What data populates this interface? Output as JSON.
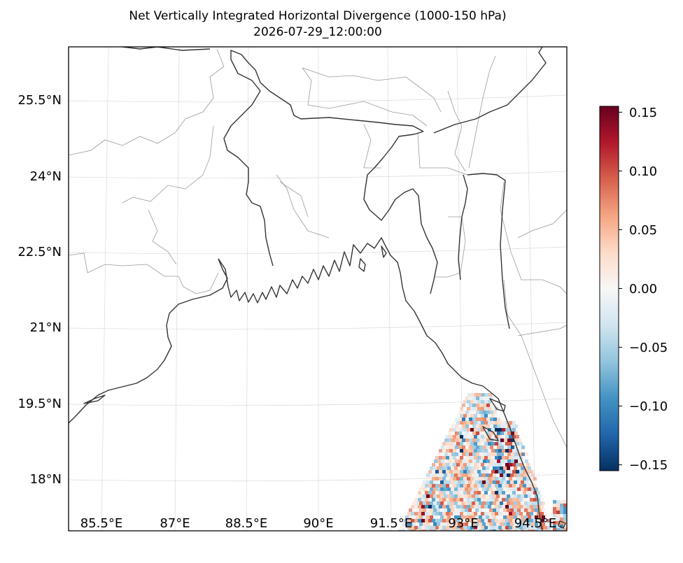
{
  "title": {
    "line1": "Net Vertically Integrated Horizontal Divergence (1000-150 hPa)",
    "line2": "2026-07-29_12:00:00"
  },
  "map": {
    "projection": "lambert-conformal",
    "lat_ticks": [
      "25.5°N",
      "24°N",
      "22.5°N",
      "21°N",
      "19.5°N",
      "18°N"
    ],
    "lon_ticks": [
      "85.5°E",
      "87°E",
      "88.5°E",
      "90°E",
      "91.5°E",
      "93°E",
      "94.5°E"
    ],
    "gridlines": true,
    "features": [
      "coastline",
      "national-borders",
      "state-borders"
    ]
  },
  "field": {
    "name": "Net Vertically Integrated Horizontal Divergence",
    "levels": "1000-150 hPa",
    "valid_region": "lower-right (offshore Myanmar / Bay of Bengal)",
    "range": [
      -0.15,
      0.15
    ]
  },
  "colorbar": {
    "colormap": "RdBu_r",
    "min": -0.155,
    "max": 0.155,
    "ticks": [
      "0.15",
      "0.10",
      "0.05",
      "0.00",
      "−0.05",
      "−0.10",
      "−0.15"
    ],
    "colors": [
      "#67001f",
      "#b2182b",
      "#d6604d",
      "#f4a582",
      "#fddbc7",
      "#f7f7f7",
      "#d1e5f0",
      "#92c5de",
      "#4393c3",
      "#2166ac",
      "#053061"
    ]
  }
}
